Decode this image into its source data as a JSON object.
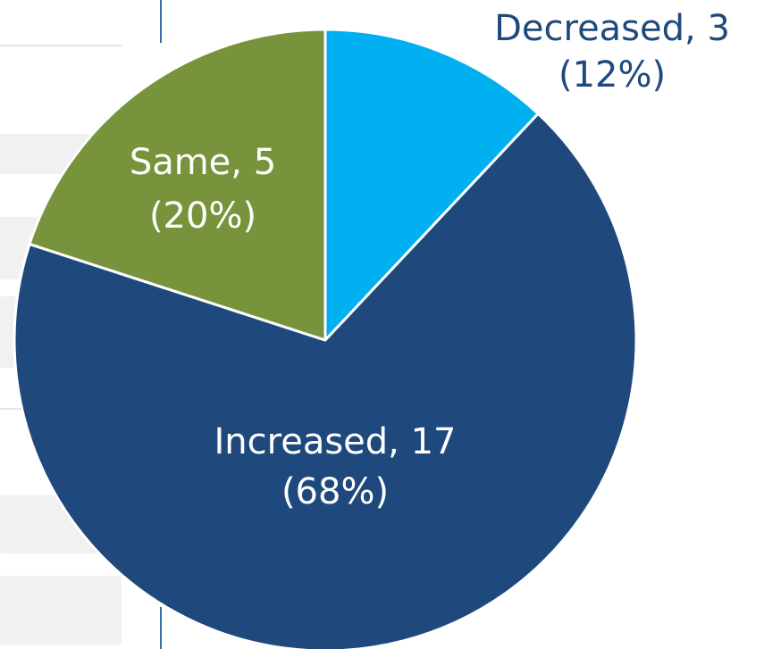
{
  "chart_data": {
    "type": "pie",
    "title": "",
    "slices": [
      {
        "label": "Decreased",
        "value": 3,
        "percent": 12,
        "color": "#00b0f0",
        "label_color": "#1f497d",
        "label_line1": "Decreased, 3",
        "label_line2": "(12%)"
      },
      {
        "label": "Increased",
        "value": 17,
        "percent": 68,
        "color": "#1f497d",
        "label_color": "#ffffff",
        "label_line1": "Increased, 17",
        "label_line2": "(68%)"
      },
      {
        "label": "Same",
        "value": 5,
        "percent": 20,
        "color": "#77933c",
        "label_color": "#ffffff",
        "label_line1": "Same, 5",
        "label_line2": "(20%)"
      }
    ],
    "start_angle_deg": 0,
    "direction": "clockwise",
    "legend": "none",
    "slice_border_color": "#ffffff"
  }
}
